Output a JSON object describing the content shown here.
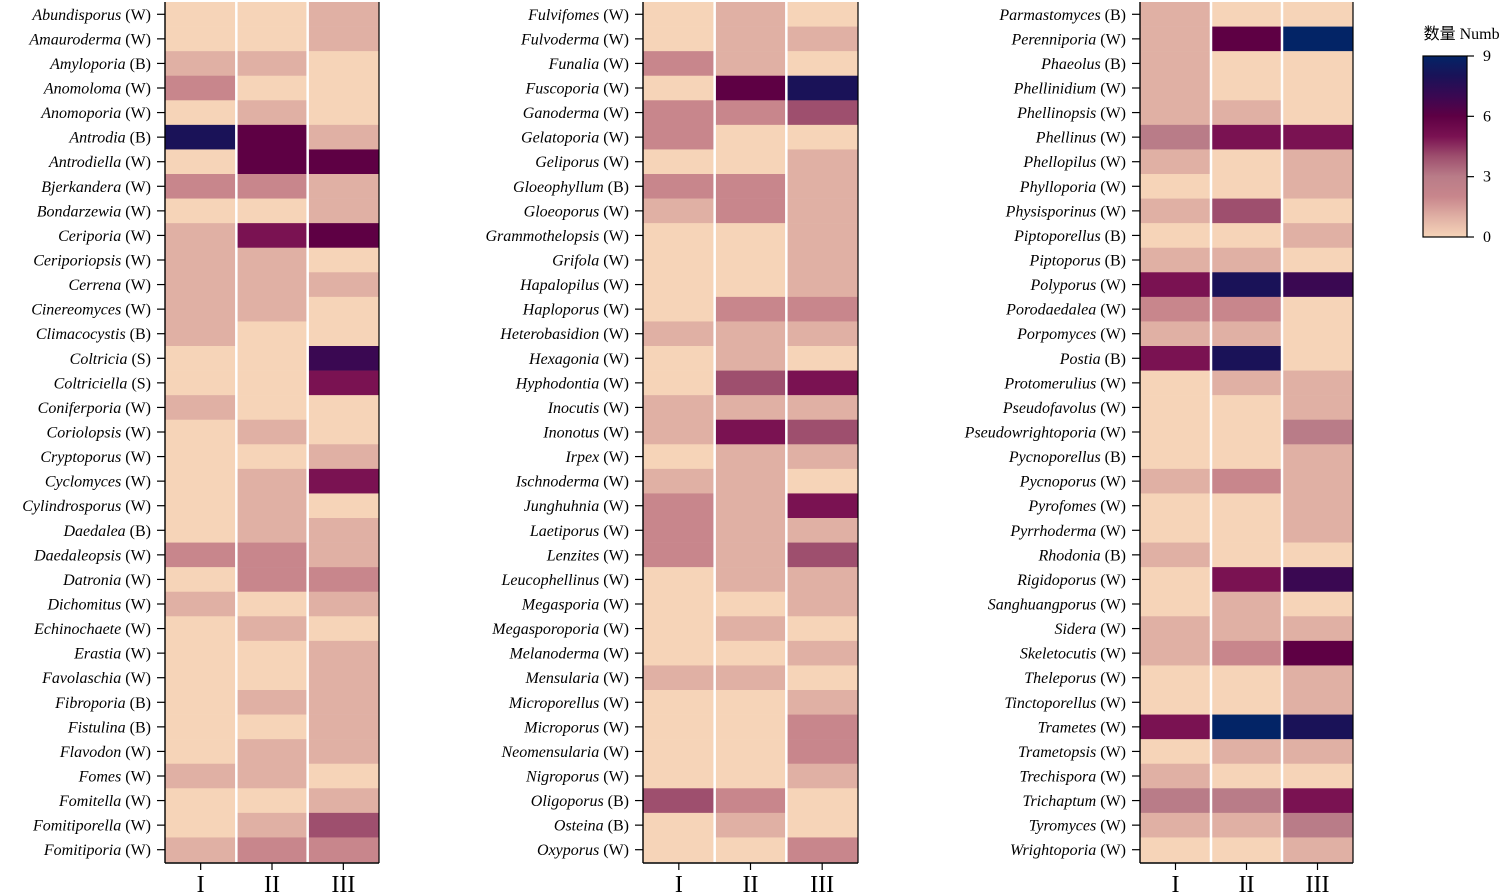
{
  "chart_data": {
    "type": "heatmap",
    "columns": [
      "I",
      "II",
      "III"
    ],
    "colorbar": {
      "title": "数量 Number",
      "min": 0,
      "max": 9,
      "ticks": [
        "0",
        "3",
        "6",
        "9"
      ],
      "stops": [
        {
          "v": 0,
          "color": "#f6d4b8"
        },
        {
          "v": 1,
          "color": "#e0b0a4"
        },
        {
          "v": 2,
          "color": "#c8868c"
        },
        {
          "v": 3,
          "color": "#b97c88"
        },
        {
          "v": 4,
          "color": "#9e4f6e"
        },
        {
          "v": 5,
          "color": "#7a1252"
        },
        {
          "v": 6,
          "color": "#5e0044"
        },
        {
          "v": 7,
          "color": "#3a0852"
        },
        {
          "v": 8,
          "color": "#1a1258"
        },
        {
          "v": 9,
          "color": "#032466"
        }
      ]
    },
    "panels": [
      {
        "rows": [
          {
            "genus": "Abundisporus",
            "type": "(W)",
            "values": [
              0,
              0,
              1
            ]
          },
          {
            "genus": "Amauroderma",
            "type": "(W)",
            "values": [
              0,
              0,
              1
            ]
          },
          {
            "genus": "Amyloporia",
            "type": "(B)",
            "values": [
              1,
              1,
              0
            ]
          },
          {
            "genus": "Anomoloma",
            "type": "(W)",
            "values": [
              2,
              0,
              0
            ]
          },
          {
            "genus": "Anomoporia",
            "type": "(W)",
            "values": [
              0,
              1,
              0
            ]
          },
          {
            "genus": "Antrodia",
            "type": "(B)",
            "values": [
              8,
              6,
              1
            ]
          },
          {
            "genus": "Antrodiella",
            "type": "(W)",
            "values": [
              0,
              6,
              6
            ]
          },
          {
            "genus": "Bjerkandera",
            "type": "(W)",
            "values": [
              2,
              2,
              1
            ]
          },
          {
            "genus": "Bondarzewia",
            "type": "(W)",
            "values": [
              0,
              0,
              1
            ]
          },
          {
            "genus": "Ceriporia",
            "type": "(W)",
            "values": [
              1,
              5,
              6
            ]
          },
          {
            "genus": "Ceriporiopsis",
            "type": "(W)",
            "values": [
              1,
              1,
              0
            ]
          },
          {
            "genus": "Cerrena",
            "type": "(W)",
            "values": [
              1,
              1,
              1
            ]
          },
          {
            "genus": "Cinereomyces",
            "type": "(W)",
            "values": [
              1,
              1,
              0
            ]
          },
          {
            "genus": "Climacocystis",
            "type": "(B)",
            "values": [
              1,
              0,
              0
            ]
          },
          {
            "genus": "Coltricia",
            "type": "(S)",
            "values": [
              0,
              0,
              7
            ]
          },
          {
            "genus": "Coltriciella",
            "type": "(S)",
            "values": [
              0,
              0,
              5
            ]
          },
          {
            "genus": "Coniferporia",
            "type": "(W)",
            "values": [
              1,
              0,
              0
            ]
          },
          {
            "genus": "Coriolopsis",
            "type": "(W)",
            "values": [
              0,
              1,
              0
            ]
          },
          {
            "genus": "Cryptoporus",
            "type": "(W)",
            "values": [
              0,
              0,
              1
            ]
          },
          {
            "genus": "Cyclomyces",
            "type": "(W)",
            "values": [
              0,
              1,
              5
            ]
          },
          {
            "genus": "Cylindrosporus",
            "type": "(W)",
            "values": [
              0,
              1,
              0
            ]
          },
          {
            "genus": "Daedalea",
            "type": "(B)",
            "values": [
              0,
              1,
              1
            ]
          },
          {
            "genus": "Daedaleopsis",
            "type": "(W)",
            "values": [
              2,
              2,
              1
            ]
          },
          {
            "genus": "Datronia",
            "type": "(W)",
            "values": [
              0,
              2,
              2
            ]
          },
          {
            "genus": "Dichomitus",
            "type": "(W)",
            "values": [
              1,
              0,
              1
            ]
          },
          {
            "genus": "Echinochaete",
            "type": "(W)",
            "values": [
              0,
              1,
              0
            ]
          },
          {
            "genus": "Erastia",
            "type": "(W)",
            "values": [
              0,
              0,
              1
            ]
          },
          {
            "genus": "Favolaschia",
            "type": "(W)",
            "values": [
              0,
              0,
              1
            ]
          },
          {
            "genus": "Fibroporia",
            "type": "(B)",
            "values": [
              0,
              1,
              1
            ]
          },
          {
            "genus": "Fistulina",
            "type": "(B)",
            "values": [
              0,
              0,
              1
            ]
          },
          {
            "genus": "Flavodon",
            "type": "(W)",
            "values": [
              0,
              1,
              1
            ]
          },
          {
            "genus": "Fomes",
            "type": "(W)",
            "values": [
              1,
              1,
              0
            ]
          },
          {
            "genus": "Fomitella",
            "type": "(W)",
            "values": [
              0,
              0,
              1
            ]
          },
          {
            "genus": "Fomitiporella",
            "type": "(W)",
            "values": [
              0,
              1,
              4
            ]
          },
          {
            "genus": "Fomitiporia",
            "type": "(W)",
            "values": [
              1,
              2,
              2
            ]
          }
        ]
      },
      {
        "rows": [
          {
            "genus": "Fulvifomes",
            "type": "(W)",
            "values": [
              0,
              1,
              0
            ]
          },
          {
            "genus": "Fulvoderma",
            "type": "(W)",
            "values": [
              0,
              1,
              1
            ]
          },
          {
            "genus": "Funalia",
            "type": "(W)",
            "values": [
              2,
              1,
              0
            ]
          },
          {
            "genus": "Fuscoporia",
            "type": "(W)",
            "values": [
              0,
              6,
              8
            ]
          },
          {
            "genus": "Ganoderma",
            "type": "(W)",
            "values": [
              2,
              2,
              4
            ]
          },
          {
            "genus": "Gelatoporia",
            "type": "(W)",
            "values": [
              2,
              0,
              0
            ]
          },
          {
            "genus": "Geliporus",
            "type": "(W)",
            "values": [
              0,
              0,
              1
            ]
          },
          {
            "genus": "Gloeophyllum",
            "type": "(B)",
            "values": [
              2,
              2,
              1
            ]
          },
          {
            "genus": "Gloeoporus",
            "type": "(W)",
            "values": [
              1,
              2,
              1
            ]
          },
          {
            "genus": "Grammothelopsis",
            "type": "(W)",
            "values": [
              0,
              0,
              1
            ]
          },
          {
            "genus": "Grifola",
            "type": "(W)",
            "values": [
              0,
              0,
              1
            ]
          },
          {
            "genus": "Hapalopilus",
            "type": "(W)",
            "values": [
              0,
              0,
              1
            ]
          },
          {
            "genus": "Haploporus",
            "type": "(W)",
            "values": [
              0,
              2,
              2
            ]
          },
          {
            "genus": "Heterobasidion",
            "type": "(W)",
            "values": [
              1,
              1,
              1
            ]
          },
          {
            "genus": "Hexagonia",
            "type": "(W)",
            "values": [
              0,
              1,
              0
            ]
          },
          {
            "genus": "Hyphodontia",
            "type": "(W)",
            "values": [
              0,
              4,
              5
            ]
          },
          {
            "genus": "Inocutis",
            "type": "(W)",
            "values": [
              1,
              1,
              1
            ]
          },
          {
            "genus": "Inonotus",
            "type": "(W)",
            "values": [
              1,
              5,
              4
            ]
          },
          {
            "genus": "Irpex",
            "type": "(W)",
            "values": [
              0,
              1,
              1
            ]
          },
          {
            "genus": "Ischnoderma",
            "type": "(W)",
            "values": [
              1,
              1,
              0
            ]
          },
          {
            "genus": "Junghuhnia",
            "type": "(W)",
            "values": [
              2,
              1,
              5
            ]
          },
          {
            "genus": "Laetiporus",
            "type": "(W)",
            "values": [
              2,
              1,
              1
            ]
          },
          {
            "genus": "Lenzites",
            "type": "(W)",
            "values": [
              2,
              1,
              4
            ]
          },
          {
            "genus": "Leucophellinus",
            "type": "(W)",
            "values": [
              0,
              1,
              1
            ]
          },
          {
            "genus": "Megasporia",
            "type": "(W)",
            "values": [
              0,
              0,
              1
            ]
          },
          {
            "genus": "Megasporoporia",
            "type": "(W)",
            "values": [
              0,
              1,
              0
            ]
          },
          {
            "genus": "Melanoderma",
            "type": "(W)",
            "values": [
              0,
              0,
              1
            ]
          },
          {
            "genus": "Mensularia",
            "type": "(W)",
            "values": [
              1,
              1,
              0
            ]
          },
          {
            "genus": "Microporellus",
            "type": "(W)",
            "values": [
              0,
              0,
              1
            ]
          },
          {
            "genus": "Microporus",
            "type": "(W)",
            "values": [
              0,
              0,
              2
            ]
          },
          {
            "genus": "Neomensularia",
            "type": "(W)",
            "values": [
              0,
              0,
              2
            ]
          },
          {
            "genus": "Nigroporus",
            "type": "(W)",
            "values": [
              0,
              0,
              1
            ]
          },
          {
            "genus": "Oligoporus",
            "type": "(B)",
            "values": [
              4,
              2,
              0
            ]
          },
          {
            "genus": "Osteina",
            "type": "(B)",
            "values": [
              0,
              1,
              0
            ]
          },
          {
            "genus": "Oxyporus",
            "type": "(W)",
            "values": [
              0,
              0,
              2
            ]
          }
        ]
      },
      {
        "rows": [
          {
            "genus": "Parmastomyces",
            "type": "(B)",
            "values": [
              1,
              0,
              0
            ]
          },
          {
            "genus": "Perenniporia",
            "type": "(W)",
            "values": [
              1,
              6,
              9
            ]
          },
          {
            "genus": "Phaeolus",
            "type": "(B)",
            "values": [
              1,
              0,
              0
            ]
          },
          {
            "genus": "Phellinidium",
            "type": "(W)",
            "values": [
              1,
              0,
              0
            ]
          },
          {
            "genus": "Phellinopsis",
            "type": "(W)",
            "values": [
              1,
              1,
              0
            ]
          },
          {
            "genus": "Phellinus",
            "type": "(W)",
            "values": [
              3,
              5,
              5
            ]
          },
          {
            "genus": "Phellopilus",
            "type": "(W)",
            "values": [
              1,
              0,
              1
            ]
          },
          {
            "genus": "Phylloporia",
            "type": "(W)",
            "values": [
              0,
              0,
              1
            ]
          },
          {
            "genus": "Physisporinus",
            "type": "(W)",
            "values": [
              1,
              4,
              0
            ]
          },
          {
            "genus": "Piptoporellus",
            "type": "(B)",
            "values": [
              0,
              0,
              1
            ]
          },
          {
            "genus": "Piptoporus",
            "type": "(B)",
            "values": [
              1,
              1,
              0
            ]
          },
          {
            "genus": "Polyporus",
            "type": "(W)",
            "values": [
              5,
              8,
              7
            ]
          },
          {
            "genus": "Porodaedalea",
            "type": "(W)",
            "values": [
              2,
              2,
              0
            ]
          },
          {
            "genus": "Porpomyces",
            "type": "(W)",
            "values": [
              1,
              1,
              0
            ]
          },
          {
            "genus": "Postia",
            "type": "(B)",
            "values": [
              5,
              8,
              0
            ]
          },
          {
            "genus": "Protomerulius",
            "type": "(W)",
            "values": [
              0,
              1,
              1
            ]
          },
          {
            "genus": "Pseudofavolus",
            "type": "(W)",
            "values": [
              0,
              0,
              1
            ]
          },
          {
            "genus": "Pseudowrightoporia",
            "type": "(W)",
            "values": [
              0,
              0,
              3
            ]
          },
          {
            "genus": "Pycnoporellus",
            "type": "(B)",
            "values": [
              0,
              0,
              1
            ]
          },
          {
            "genus": "Pycnoporus",
            "type": "(W)",
            "values": [
              1,
              2,
              1
            ]
          },
          {
            "genus": "Pyrofomes",
            "type": "(W)",
            "values": [
              0,
              0,
              1
            ]
          },
          {
            "genus": "Pyrrhoderma",
            "type": "(W)",
            "values": [
              0,
              0,
              1
            ]
          },
          {
            "genus": "Rhodonia",
            "type": "(B)",
            "values": [
              1,
              0,
              0
            ]
          },
          {
            "genus": "Rigidoporus",
            "type": "(W)",
            "values": [
              0,
              5,
              7
            ]
          },
          {
            "genus": "Sanghuangporus",
            "type": "(W)",
            "values": [
              0,
              1,
              0
            ]
          },
          {
            "genus": "Sidera",
            "type": "(W)",
            "values": [
              1,
              1,
              1
            ]
          },
          {
            "genus": "Skeletocutis",
            "type": "(W)",
            "values": [
              1,
              2,
              6
            ]
          },
          {
            "genus": "Theleporus",
            "type": "(W)",
            "values": [
              0,
              0,
              1
            ]
          },
          {
            "genus": "Tinctoporellus",
            "type": "(W)",
            "values": [
              0,
              0,
              1
            ]
          },
          {
            "genus": "Trametes",
            "type": "(W)",
            "values": [
              5,
              9,
              8
            ]
          },
          {
            "genus": "Trametopsis",
            "type": "(W)",
            "values": [
              0,
              1,
              1
            ]
          },
          {
            "genus": "Trechispora",
            "type": "(W)",
            "values": [
              1,
              0,
              0
            ]
          },
          {
            "genus": "Trichaptum",
            "type": "(W)",
            "values": [
              3,
              3,
              5
            ]
          },
          {
            "genus": "Tyromyces",
            "type": "(W)",
            "values": [
              1,
              1,
              3
            ]
          },
          {
            "genus": "Wrightoporia",
            "type": "(W)",
            "values": [
              0,
              0,
              1
            ]
          }
        ]
      }
    ]
  }
}
